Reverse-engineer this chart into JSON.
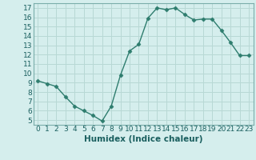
{
  "x": [
    0,
    1,
    2,
    3,
    4,
    5,
    6,
    7,
    8,
    9,
    10,
    11,
    12,
    13,
    14,
    15,
    16,
    17,
    18,
    19,
    20,
    21,
    22,
    23
  ],
  "y": [
    9.2,
    8.9,
    8.6,
    7.5,
    6.5,
    6.0,
    5.5,
    4.9,
    6.5,
    9.8,
    12.4,
    13.1,
    15.9,
    17.0,
    16.8,
    17.0,
    16.3,
    15.7,
    15.8,
    15.8,
    14.6,
    13.3,
    11.9,
    11.9
  ],
  "line_color": "#2e7d6e",
  "marker": "D",
  "marker_size": 2.5,
  "bg_color": "#d5eeed",
  "grid_color": "#b8d8d5",
  "xlabel": "Humidex (Indice chaleur)",
  "xlim": [
    -0.5,
    23.5
  ],
  "ylim": [
    4.5,
    17.5
  ],
  "yticks": [
    5,
    6,
    7,
    8,
    9,
    10,
    11,
    12,
    13,
    14,
    15,
    16,
    17
  ],
  "xticks": [
    0,
    1,
    2,
    3,
    4,
    5,
    6,
    7,
    8,
    9,
    10,
    11,
    12,
    13,
    14,
    15,
    16,
    17,
    18,
    19,
    20,
    21,
    22,
    23
  ],
  "xlabel_fontsize": 7.5,
  "tick_fontsize": 6.5,
  "line_width": 1.0
}
